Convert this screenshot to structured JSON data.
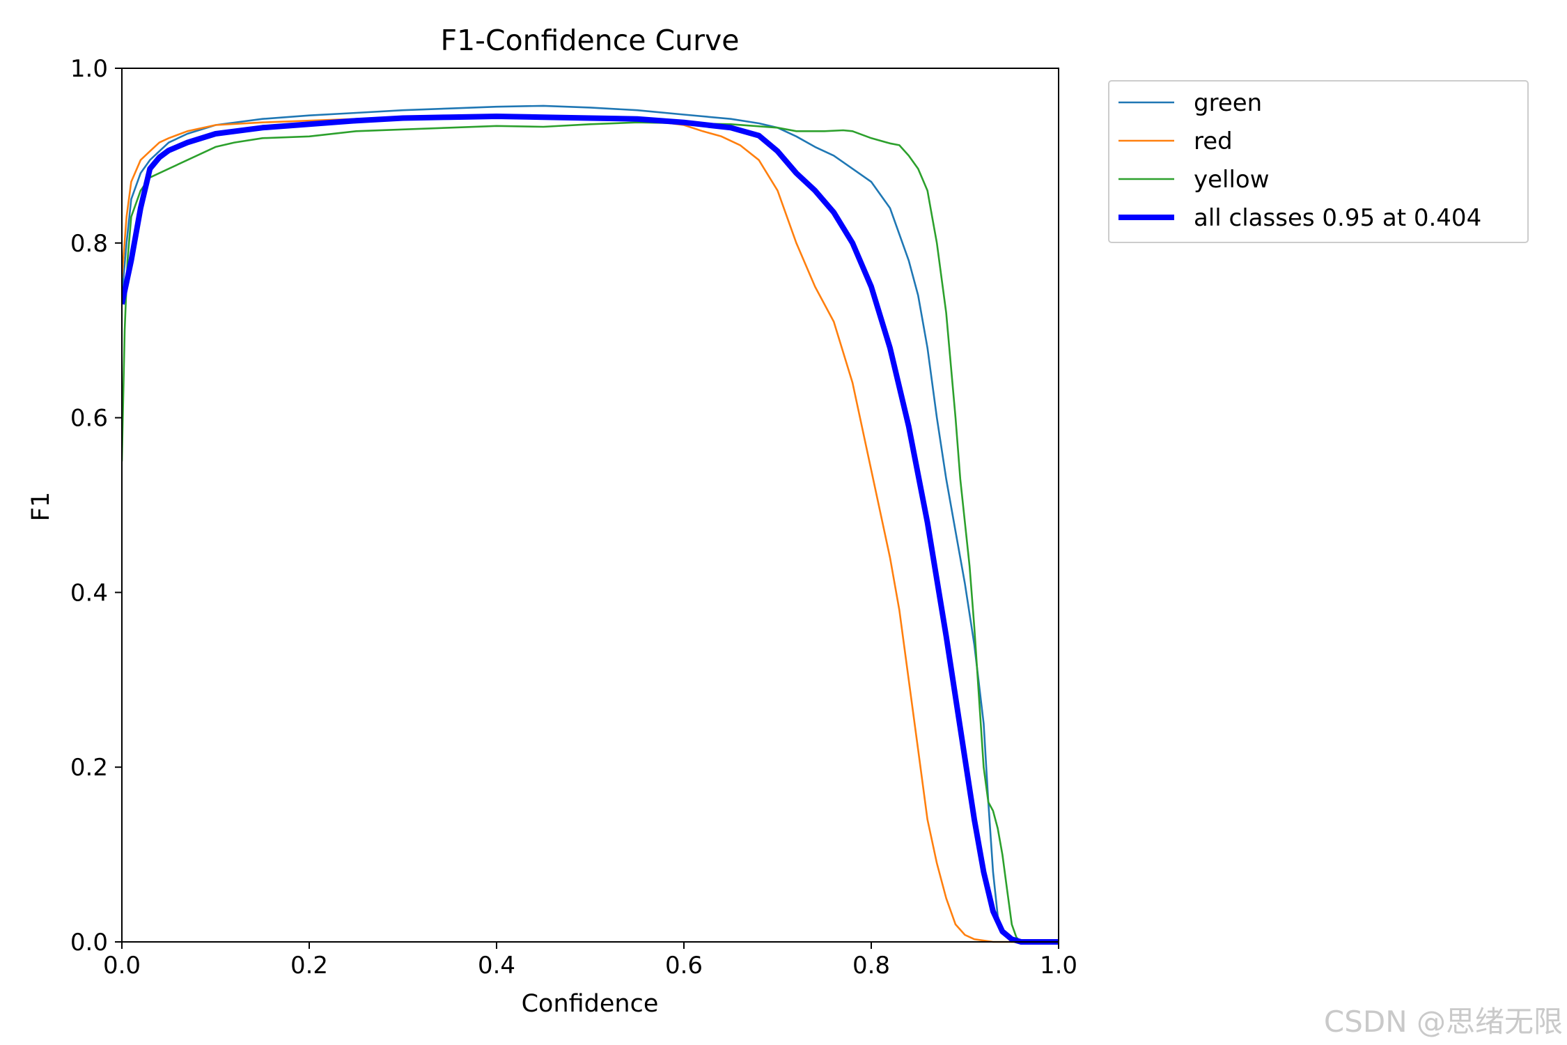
{
  "watermark": "CSDN @思绪无限",
  "chart_data": {
    "type": "line",
    "title": "F1-Confidence Curve",
    "xlabel": "Confidence",
    "ylabel": "F1",
    "xlim": [
      0.0,
      1.0
    ],
    "ylim": [
      0.0,
      1.0
    ],
    "xticks": [
      0.0,
      0.2,
      0.4,
      0.6,
      0.8,
      1.0
    ],
    "yticks": [
      0.0,
      0.2,
      0.4,
      0.6,
      0.8,
      1.0
    ],
    "xtick_labels": [
      "0.0",
      "0.2",
      "0.4",
      "0.6",
      "0.8",
      "1.0"
    ],
    "ytick_labels": [
      "0.0",
      "0.2",
      "0.4",
      "0.6",
      "0.8",
      "1.0"
    ],
    "grid": false,
    "legend_position": "outside top-right",
    "series": [
      {
        "name": "green",
        "color": "#1f77b4",
        "line_weight": "thin",
        "points": [
          [
            0.0,
            0.74
          ],
          [
            0.005,
            0.8
          ],
          [
            0.01,
            0.85
          ],
          [
            0.02,
            0.88
          ],
          [
            0.03,
            0.895
          ],
          [
            0.04,
            0.905
          ],
          [
            0.05,
            0.915
          ],
          [
            0.07,
            0.925
          ],
          [
            0.1,
            0.935
          ],
          [
            0.15,
            0.942
          ],
          [
            0.2,
            0.946
          ],
          [
            0.25,
            0.949
          ],
          [
            0.3,
            0.952
          ],
          [
            0.35,
            0.954
          ],
          [
            0.4,
            0.956
          ],
          [
            0.45,
            0.957
          ],
          [
            0.5,
            0.955
          ],
          [
            0.55,
            0.952
          ],
          [
            0.6,
            0.947
          ],
          [
            0.65,
            0.942
          ],
          [
            0.68,
            0.937
          ],
          [
            0.7,
            0.932
          ],
          [
            0.72,
            0.922
          ],
          [
            0.74,
            0.91
          ],
          [
            0.76,
            0.9
          ],
          [
            0.78,
            0.885
          ],
          [
            0.8,
            0.87
          ],
          [
            0.82,
            0.84
          ],
          [
            0.84,
            0.78
          ],
          [
            0.85,
            0.74
          ],
          [
            0.86,
            0.68
          ],
          [
            0.87,
            0.6
          ],
          [
            0.88,
            0.53
          ],
          [
            0.89,
            0.47
          ],
          [
            0.9,
            0.41
          ],
          [
            0.91,
            0.34
          ],
          [
            0.92,
            0.25
          ],
          [
            0.925,
            0.16
          ],
          [
            0.93,
            0.08
          ],
          [
            0.935,
            0.03
          ],
          [
            0.94,
            0.01
          ],
          [
            0.95,
            0.0
          ],
          [
            1.0,
            0.0
          ]
        ]
      },
      {
        "name": "red",
        "color": "#ff7f0e",
        "line_weight": "thin",
        "points": [
          [
            0.0,
            0.76
          ],
          [
            0.005,
            0.83
          ],
          [
            0.01,
            0.87
          ],
          [
            0.02,
            0.895
          ],
          [
            0.03,
            0.905
          ],
          [
            0.04,
            0.915
          ],
          [
            0.05,
            0.92
          ],
          [
            0.07,
            0.928
          ],
          [
            0.1,
            0.935
          ],
          [
            0.15,
            0.938
          ],
          [
            0.2,
            0.94
          ],
          [
            0.25,
            0.942
          ],
          [
            0.3,
            0.944
          ],
          [
            0.35,
            0.945
          ],
          [
            0.4,
            0.945
          ],
          [
            0.45,
            0.945
          ],
          [
            0.5,
            0.944
          ],
          [
            0.55,
            0.942
          ],
          [
            0.6,
            0.935
          ],
          [
            0.62,
            0.928
          ],
          [
            0.64,
            0.922
          ],
          [
            0.66,
            0.912
          ],
          [
            0.68,
            0.895
          ],
          [
            0.7,
            0.86
          ],
          [
            0.72,
            0.8
          ],
          [
            0.74,
            0.75
          ],
          [
            0.76,
            0.71
          ],
          [
            0.78,
            0.64
          ],
          [
            0.8,
            0.54
          ],
          [
            0.82,
            0.44
          ],
          [
            0.83,
            0.38
          ],
          [
            0.84,
            0.3
          ],
          [
            0.85,
            0.22
          ],
          [
            0.86,
            0.14
          ],
          [
            0.87,
            0.09
          ],
          [
            0.88,
            0.05
          ],
          [
            0.89,
            0.02
          ],
          [
            0.9,
            0.008
          ],
          [
            0.91,
            0.003
          ],
          [
            0.93,
            0.0
          ],
          [
            1.0,
            0.0
          ]
        ]
      },
      {
        "name": "yellow",
        "color": "#2ca02c",
        "line_weight": "thin",
        "points": [
          [
            0.0,
            0.55
          ],
          [
            0.003,
            0.7
          ],
          [
            0.006,
            0.78
          ],
          [
            0.01,
            0.83
          ],
          [
            0.02,
            0.86
          ],
          [
            0.03,
            0.875
          ],
          [
            0.05,
            0.885
          ],
          [
            0.07,
            0.895
          ],
          [
            0.1,
            0.91
          ],
          [
            0.12,
            0.915
          ],
          [
            0.15,
            0.92
          ],
          [
            0.2,
            0.922
          ],
          [
            0.25,
            0.928
          ],
          [
            0.3,
            0.93
          ],
          [
            0.35,
            0.932
          ],
          [
            0.4,
            0.934
          ],
          [
            0.45,
            0.933
          ],
          [
            0.5,
            0.936
          ],
          [
            0.55,
            0.938
          ],
          [
            0.6,
            0.937
          ],
          [
            0.65,
            0.936
          ],
          [
            0.7,
            0.932
          ],
          [
            0.72,
            0.928
          ],
          [
            0.75,
            0.928
          ],
          [
            0.77,
            0.929
          ],
          [
            0.78,
            0.928
          ],
          [
            0.8,
            0.92
          ],
          [
            0.82,
            0.914
          ],
          [
            0.83,
            0.912
          ],
          [
            0.84,
            0.9
          ],
          [
            0.85,
            0.885
          ],
          [
            0.86,
            0.86
          ],
          [
            0.865,
            0.83
          ],
          [
            0.87,
            0.8
          ],
          [
            0.875,
            0.76
          ],
          [
            0.88,
            0.72
          ],
          [
            0.885,
            0.66
          ],
          [
            0.89,
            0.6
          ],
          [
            0.895,
            0.53
          ],
          [
            0.9,
            0.48
          ],
          [
            0.905,
            0.43
          ],
          [
            0.91,
            0.36
          ],
          [
            0.915,
            0.28
          ],
          [
            0.92,
            0.2
          ],
          [
            0.925,
            0.16
          ],
          [
            0.93,
            0.15
          ],
          [
            0.935,
            0.13
          ],
          [
            0.94,
            0.1
          ],
          [
            0.945,
            0.06
          ],
          [
            0.95,
            0.02
          ],
          [
            0.955,
            0.005
          ],
          [
            0.96,
            0.0
          ],
          [
            1.0,
            0.0
          ]
        ]
      },
      {
        "name": "all classes 0.95 at 0.404",
        "color": "#0000ff",
        "line_weight": "thick",
        "points": [
          [
            0.0,
            0.73
          ],
          [
            0.01,
            0.78
          ],
          [
            0.02,
            0.84
          ],
          [
            0.03,
            0.885
          ],
          [
            0.04,
            0.898
          ],
          [
            0.05,
            0.906
          ],
          [
            0.07,
            0.915
          ],
          [
            0.1,
            0.925
          ],
          [
            0.15,
            0.932
          ],
          [
            0.2,
            0.936
          ],
          [
            0.25,
            0.94
          ],
          [
            0.3,
            0.943
          ],
          [
            0.35,
            0.944
          ],
          [
            0.4,
            0.945
          ],
          [
            0.45,
            0.944
          ],
          [
            0.5,
            0.943
          ],
          [
            0.55,
            0.942
          ],
          [
            0.6,
            0.938
          ],
          [
            0.65,
            0.932
          ],
          [
            0.68,
            0.923
          ],
          [
            0.7,
            0.905
          ],
          [
            0.72,
            0.88
          ],
          [
            0.74,
            0.86
          ],
          [
            0.76,
            0.835
          ],
          [
            0.78,
            0.8
          ],
          [
            0.8,
            0.75
          ],
          [
            0.82,
            0.68
          ],
          [
            0.84,
            0.59
          ],
          [
            0.86,
            0.48
          ],
          [
            0.88,
            0.35
          ],
          [
            0.9,
            0.21
          ],
          [
            0.91,
            0.14
          ],
          [
            0.92,
            0.08
          ],
          [
            0.93,
            0.035
          ],
          [
            0.94,
            0.012
          ],
          [
            0.95,
            0.003
          ],
          [
            0.96,
            0.0
          ],
          [
            1.0,
            0.0
          ]
        ]
      }
    ]
  }
}
